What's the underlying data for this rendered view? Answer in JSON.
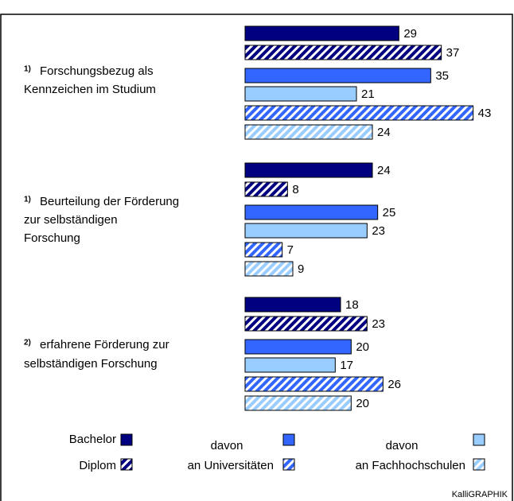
{
  "chart_data": {
    "type": "bar",
    "orientation": "horizontal",
    "categories": [
      [
        "Forschungsbezug als",
        "Kennzeichen im Studium"
      ],
      [
        "Beurteilung der Förderung",
        "zur selbständigen",
        "Forschung"
      ],
      [
        "erfahrene Förderung zur",
        "selbständigen Forschung"
      ]
    ],
    "category_notes": [
      "1)",
      "1)",
      "2)"
    ],
    "xlim": [
      0,
      45
    ],
    "series": [
      {
        "name": "Bachelor",
        "color": "#000080",
        "hatched": false,
        "values": [
          29,
          24,
          18
        ]
      },
      {
        "name": "Diplom",
        "color": "#000080",
        "hatched": true,
        "values": [
          37,
          8,
          23
        ]
      },
      {
        "name": "davon",
        "color": "#3366ff",
        "hatched": false,
        "values": [
          35,
          25,
          20
        ]
      },
      {
        "name": "davon",
        "color": "#99ccff",
        "hatched": false,
        "values": [
          21,
          23,
          17
        ]
      },
      {
        "name": "an Universitäten",
        "color": "#3366ff",
        "hatched": true,
        "values": [
          43,
          7,
          26
        ]
      },
      {
        "name": "an Fachhochschulen",
        "color": "#99ccff",
        "hatched": true,
        "values": [
          24,
          9,
          20
        ]
      }
    ],
    "source": "KalliGRAPHIK"
  }
}
